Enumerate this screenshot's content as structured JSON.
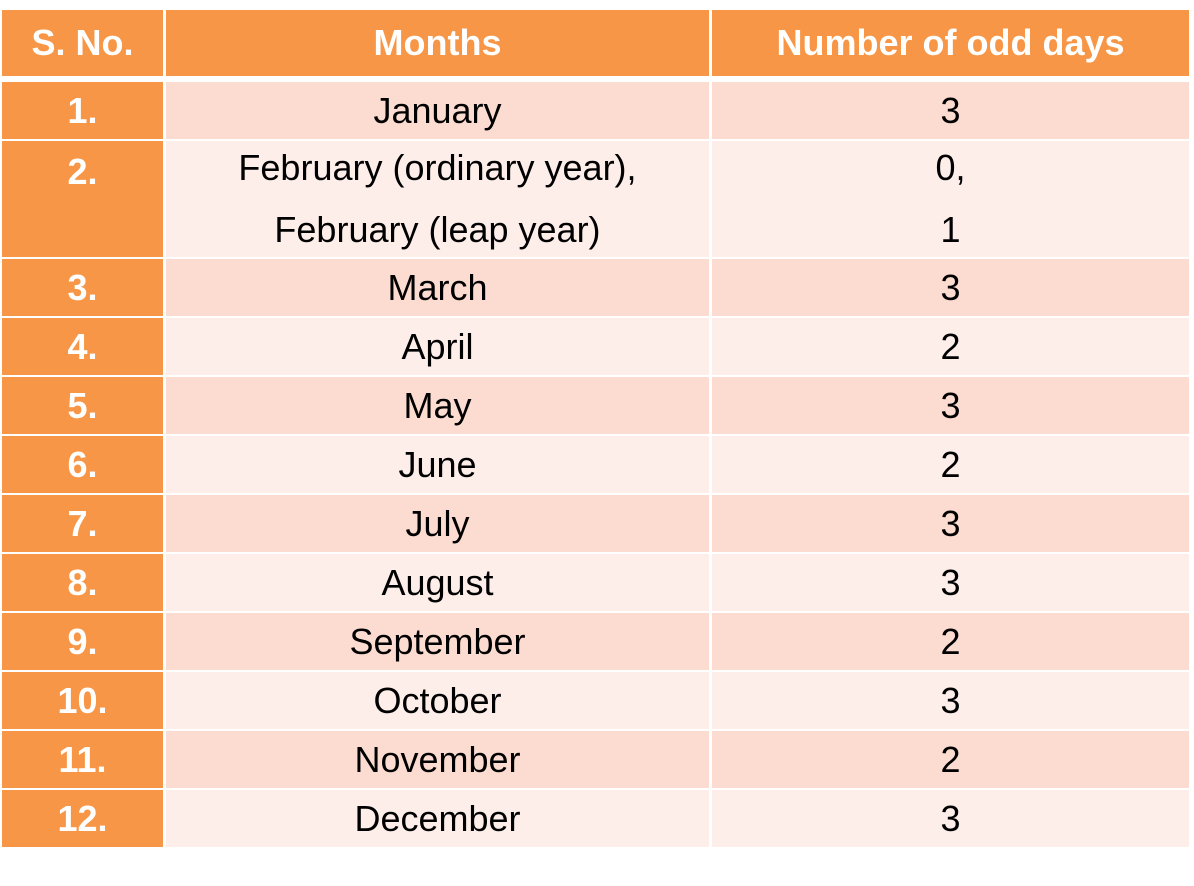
{
  "table": {
    "headers": {
      "sno": "S. No.",
      "month": "Months",
      "odd_days": "Number of odd days"
    },
    "rows": [
      {
        "sno": "1.",
        "month": "January",
        "odd_days": "3"
      },
      {
        "sno": "2.",
        "month_lines": [
          "February (ordinary year),",
          "February (leap year)"
        ],
        "odd_days_lines": [
          "0,",
          "1"
        ]
      },
      {
        "sno": "3.",
        "month": "March",
        "odd_days": "3"
      },
      {
        "sno": "4.",
        "month": "April",
        "odd_days": "2"
      },
      {
        "sno": "5.",
        "month": "May",
        "odd_days": "3"
      },
      {
        "sno": "6.",
        "month": "June",
        "odd_days": "2"
      },
      {
        "sno": "7.",
        "month": "July",
        "odd_days": "3"
      },
      {
        "sno": "8.",
        "month": "August",
        "odd_days": "3"
      },
      {
        "sno": "9.",
        "month": "September",
        "odd_days": "2"
      },
      {
        "sno": "10.",
        "month": "October",
        "odd_days": "3"
      },
      {
        "sno": "11.",
        "month": "November",
        "odd_days": "2"
      },
      {
        "sno": "12.",
        "month": "December",
        "odd_days": "3"
      }
    ]
  },
  "colors": {
    "header_bg": "#f79646",
    "row_band_1": "#fcdcd0",
    "row_band_2": "#fdeeea"
  }
}
